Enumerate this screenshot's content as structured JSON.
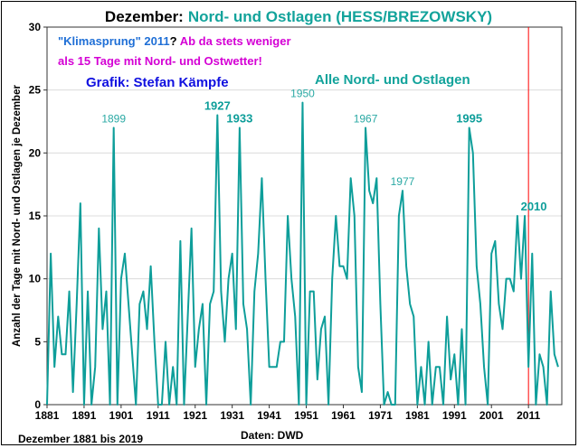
{
  "chart_data": {
    "type": "line",
    "title_prefix": "Dezember:",
    "title_main": "Nord- und Ostlagen (HESS/BREZOWSKY)",
    "ylabel": "Anzahl der Tage mit Nord- und Ostlagen je Dezember",
    "xlabel_left": "Dezember 1881 bis 2019",
    "xlabel_source": "Daten: DWD",
    "xlim": [
      1881,
      2020
    ],
    "ylim": [
      0,
      30
    ],
    "grid": true,
    "x_ticks": [
      "1881",
      "1891",
      "1901",
      "1911",
      "1921",
      "1931",
      "1941",
      "1951",
      "1961",
      "1971",
      "1981",
      "1991",
      "2001",
      "2011"
    ],
    "y_ticks": [
      "0",
      "5",
      "10",
      "15",
      "20",
      "25",
      "30"
    ],
    "series": [
      {
        "name": "Alle Nord- und Ostlagen",
        "color": "#0e9e9a",
        "x_start": 1881,
        "values": [
          0,
          12,
          3,
          7,
          4,
          4,
          9,
          1,
          8,
          16,
          0,
          9,
          0,
          3,
          14,
          6,
          9,
          0,
          22,
          0,
          10,
          12,
          8,
          4,
          0,
          8,
          9,
          6,
          11,
          5,
          0,
          0,
          5,
          0,
          3,
          0,
          13,
          0,
          7,
          14,
          3,
          6,
          8,
          0,
          8,
          9,
          23,
          9,
          5,
          10,
          12,
          6,
          22,
          8,
          6,
          0,
          9,
          12,
          18,
          10,
          3,
          3,
          3,
          5,
          5,
          15,
          10,
          7,
          0,
          24,
          0,
          9,
          9,
          2,
          6,
          7,
          0,
          10,
          15,
          11,
          11,
          10,
          18,
          15,
          3,
          1,
          22,
          17,
          16,
          18,
          8,
          0,
          1,
          0,
          0,
          15,
          17,
          11,
          8,
          7,
          0,
          3,
          0,
          5,
          0,
          3,
          3,
          0,
          7,
          2,
          4,
          0,
          6,
          0,
          22,
          20,
          11,
          8,
          3,
          0,
          12,
          13,
          8,
          6,
          10,
          10,
          9,
          15,
          10,
          15,
          3,
          12,
          0,
          4,
          3,
          0,
          9,
          4,
          3
        ]
      }
    ],
    "point_labels": [
      {
        "year": 1899,
        "text": "1899",
        "bold": false
      },
      {
        "year": 1927,
        "text": "1927",
        "bold": true
      },
      {
        "year": 1933,
        "text": "1933",
        "bold": true
      },
      {
        "year": 1950,
        "text": "1950",
        "bold": false
      },
      {
        "year": 1967,
        "text": "1967",
        "bold": false
      },
      {
        "year": 1977,
        "text": "1977",
        "bold": false
      },
      {
        "year": 1995,
        "text": "1995",
        "bold": true
      },
      {
        "year": 2010,
        "text": "2010",
        "bold": true
      }
    ],
    "marker_line": {
      "year": 2011,
      "color": "#ff0000"
    },
    "annotations": {
      "klima_quote": "\"Klimasprung\" 2011",
      "klima_q": "?",
      "klima_rest1": " Ab da stets weniger",
      "klima_rest2": "als 15 Tage mit Nord- und Ostwetter!",
      "credit": "Grafik: Stefan Kämpfe",
      "legend": "Alle Nord- und Ostlagen"
    },
    "colors": {
      "title_teal": "#12a39b",
      "blue": "#1f6fd6",
      "magenta": "#d400d4",
      "credit_blue": "#1010e0"
    }
  }
}
